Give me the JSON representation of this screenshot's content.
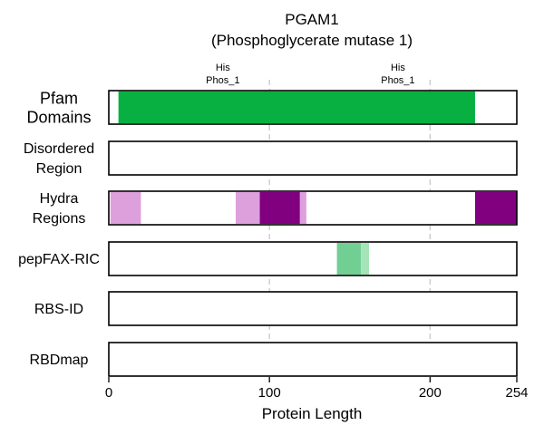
{
  "chart_data": {
    "type": "bar",
    "title": "PGAM1",
    "subtitle": "(Phosphoglycerate mutase 1)",
    "xlabel": "Protein Length",
    "xlim": [
      0,
      254
    ],
    "xticks": [
      0,
      100,
      200,
      254
    ],
    "gridlines_x": [
      100,
      200
    ],
    "tracks": [
      {
        "label_lines": [
          "Pfam",
          "Domains"
        ],
        "segments": [
          {
            "start": 6,
            "end": 228,
            "color": "#07b040"
          }
        ],
        "annotations": [
          {
            "x": 71,
            "lines": [
              "His",
              "Phos_1"
            ]
          },
          {
            "x": 180,
            "lines": [
              "His",
              "Phos_1"
            ]
          }
        ]
      },
      {
        "label_lines": [
          "Disordered",
          "Region"
        ],
        "segments": []
      },
      {
        "label_lines": [
          "Hydra",
          "Regions"
        ],
        "segments": [
          {
            "start": 1,
            "end": 20,
            "color": "#dda0dd"
          },
          {
            "start": 79,
            "end": 94,
            "color": "#dda0dd"
          },
          {
            "start": 94,
            "end": 119,
            "color": "#800080"
          },
          {
            "start": 119,
            "end": 123,
            "color": "#dda0dd"
          },
          {
            "start": 228,
            "end": 254,
            "color": "#800080"
          }
        ]
      },
      {
        "label_lines": [
          "pepFAX-RIC"
        ],
        "segments": [
          {
            "start": 142,
            "end": 157,
            "color": "#72cf94"
          },
          {
            "start": 157,
            "end": 162,
            "color": "#a5e4b8"
          }
        ]
      },
      {
        "label_lines": [
          "RBS-ID"
        ],
        "segments": []
      },
      {
        "label_lines": [
          "RBDmap"
        ],
        "segments": []
      }
    ]
  }
}
